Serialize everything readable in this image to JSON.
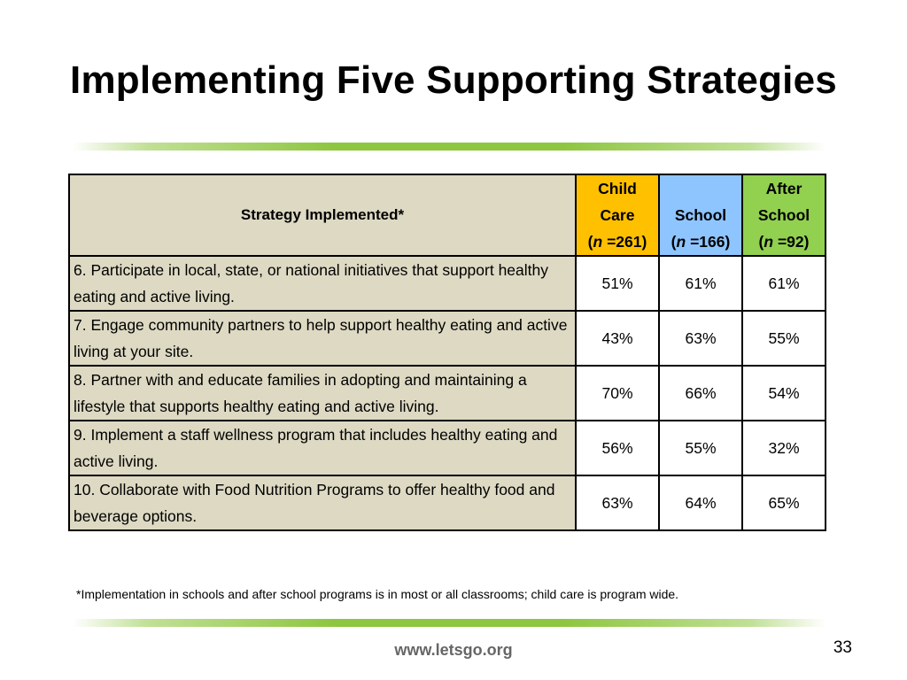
{
  "slide": {
    "title": "Implementing Five Supporting Strategies",
    "footnote": "*Implementation in schools and after school programs is in most or all classrooms; child care is program wide.",
    "url": "www.letsgo.org",
    "page_number": "33"
  },
  "table": {
    "strategy_header": "Strategy Implemented*",
    "columns": [
      {
        "line1": "Child",
        "line2": "Care",
        "n_label": "n",
        "n_value": " =261)",
        "color": "#ffc000"
      },
      {
        "line1": "",
        "line2": "School",
        "n_label": "n",
        "n_value": " =166)",
        "color": "#8ec5ff"
      },
      {
        "line1": "After",
        "line2": "School",
        "n_label": "n",
        "n_value": " =92)",
        "color": "#92d050"
      }
    ],
    "rows": [
      {
        "strategy": "6. Participate in local, state, or national initiatives that support healthy eating and active living.",
        "values": [
          "51%",
          "61%",
          "61%"
        ]
      },
      {
        "strategy": "7. Engage community partners to help support healthy eating and active living at your site.",
        "values": [
          "43%",
          "63%",
          "55%"
        ]
      },
      {
        "strategy": "8. Partner with and educate families in adopting and maintaining a lifestyle that supports healthy eating and active living.",
        "values": [
          "70%",
          "66%",
          "54%"
        ]
      },
      {
        "strategy": "9.  Implement a staff wellness program that includes healthy eating and active living.",
        "values": [
          "56%",
          "55%",
          "32%"
        ]
      },
      {
        "strategy": "10. Collaborate with Food Nutrition Programs to offer healthy food and beverage options.",
        "values": [
          "63%",
          "64%",
          "65%"
        ]
      }
    ]
  },
  "colors": {
    "strategy_fill": "#ddd9c3",
    "accent_bar": "#8dc63f"
  }
}
